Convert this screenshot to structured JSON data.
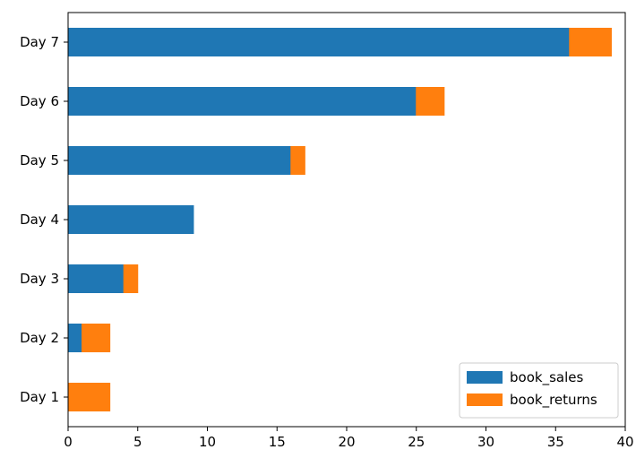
{
  "chart_data": {
    "type": "bar",
    "orientation": "horizontal",
    "stacked": true,
    "categories": [
      "Day 1",
      "Day 2",
      "Day 3",
      "Day 4",
      "Day 5",
      "Day 6",
      "Day 7"
    ],
    "series": [
      {
        "name": "book_sales",
        "color": "#1f77b4",
        "values": [
          0,
          1,
          4,
          9,
          16,
          25,
          36
        ]
      },
      {
        "name": "book_returns",
        "color": "#ff7f0e",
        "values": [
          3,
          2,
          1,
          0,
          1,
          2,
          3
        ]
      }
    ],
    "xlim": [
      0,
      40
    ],
    "xticks": [
      "0",
      "5",
      "10",
      "15",
      "20",
      "25",
      "30",
      "35",
      "40"
    ],
    "title": "",
    "xlabel": "",
    "ylabel": "",
    "grid": false,
    "legend_position": "bottom-right"
  }
}
